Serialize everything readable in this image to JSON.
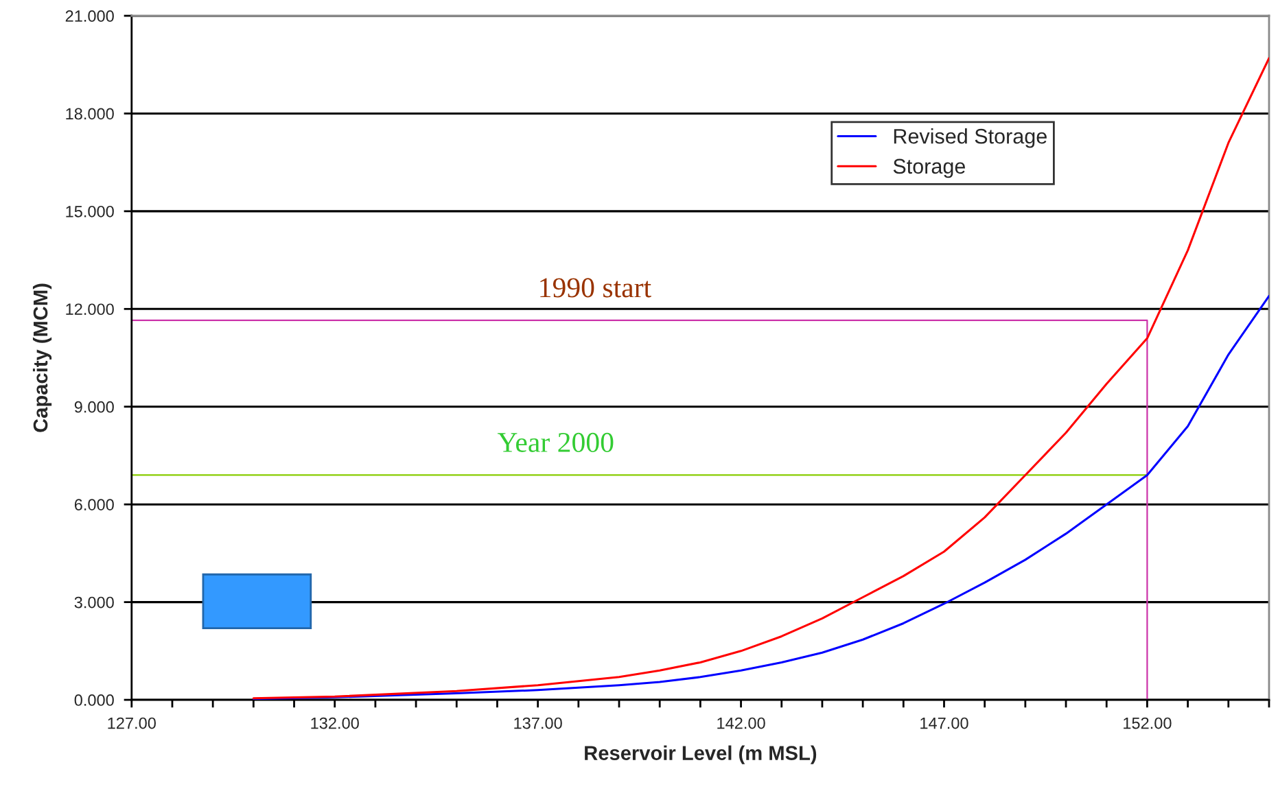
{
  "chart_data": {
    "type": "line",
    "xlabel": "Reservoir Level (m MSL)",
    "ylabel": "Capacity (MCM)",
    "xlim": [
      127,
      155
    ],
    "ylim": [
      0,
      21
    ],
    "xticks": [
      {
        "value": 127,
        "label": "127.00"
      },
      {
        "value": 128,
        "label": null
      },
      {
        "value": 129,
        "label": null
      },
      {
        "value": 130,
        "label": null
      },
      {
        "value": 131,
        "label": null
      },
      {
        "value": 132,
        "label": "132.00"
      },
      {
        "value": 133,
        "label": null
      },
      {
        "value": 134,
        "label": null
      },
      {
        "value": 135,
        "label": null
      },
      {
        "value": 136,
        "label": null
      },
      {
        "value": 137,
        "label": "137.00"
      },
      {
        "value": 138,
        "label": null
      },
      {
        "value": 139,
        "label": null
      },
      {
        "value": 140,
        "label": null
      },
      {
        "value": 141,
        "label": null
      },
      {
        "value": 142,
        "label": "142.00"
      },
      {
        "value": 143,
        "label": null
      },
      {
        "value": 144,
        "label": null
      },
      {
        "value": 145,
        "label": null
      },
      {
        "value": 146,
        "label": null
      },
      {
        "value": 147,
        "label": "147.00"
      },
      {
        "value": 148,
        "label": null
      },
      {
        "value": 149,
        "label": null
      },
      {
        "value": 150,
        "label": null
      },
      {
        "value": 151,
        "label": null
      },
      {
        "value": 152,
        "label": "152.00"
      },
      {
        "value": 153,
        "label": null
      },
      {
        "value": 154,
        "label": null
      },
      {
        "value": 155,
        "label": null
      }
    ],
    "yticks": [
      {
        "value": 0,
        "label": "0.000"
      },
      {
        "value": 3,
        "label": "3.000"
      },
      {
        "value": 6,
        "label": "6.000"
      },
      {
        "value": 9,
        "label": "9.000"
      },
      {
        "value": 12,
        "label": "12.000"
      },
      {
        "value": 15,
        "label": "15.000"
      },
      {
        "value": 18,
        "label": "18.000"
      },
      {
        "value": 21,
        "label": "21.000"
      }
    ],
    "grid": "y",
    "legend": "top right",
    "marker": "none",
    "line_style": "solid",
    "series": [
      {
        "name": "Revised Storage",
        "color": "#0000ff",
        "x": [
          130,
          132,
          135,
          137,
          139,
          140,
          141,
          142,
          143,
          144,
          145,
          146,
          147,
          148,
          149,
          150,
          151,
          152,
          153,
          154,
          155
        ],
        "values": [
          0.03,
          0.08,
          0.2,
          0.3,
          0.45,
          0.55,
          0.7,
          0.9,
          1.15,
          1.45,
          1.85,
          2.35,
          2.95,
          3.6,
          4.3,
          5.1,
          6.0,
          6.9,
          8.4,
          10.6,
          12.4
        ]
      },
      {
        "name": "Storage",
        "color": "#ff0000",
        "x": [
          130,
          132,
          135,
          137,
          139,
          140,
          141,
          142,
          143,
          144,
          145,
          146,
          147,
          148,
          149,
          150,
          151,
          152,
          153,
          154,
          155
        ],
        "values": [
          0.05,
          0.1,
          0.27,
          0.45,
          0.7,
          0.9,
          1.15,
          1.5,
          1.95,
          2.5,
          3.15,
          3.8,
          4.55,
          5.6,
          6.9,
          8.2,
          9.7,
          11.1,
          13.8,
          17.1,
          19.7
        ]
      },
      {
        "color": "#cc33aa",
        "x": [
          127,
          152,
          152
        ],
        "values": [
          11.65,
          11.65,
          0
        ]
      },
      {
        "color": "#88cc00",
        "x": [
          127,
          152
        ],
        "values": [
          6.9,
          6.9
        ]
      }
    ],
    "annotations": [
      {
        "text": "1990 start",
        "x": 137,
        "y": 11.65
      },
      {
        "text": "Year 2000",
        "x": 136,
        "y": 6.9
      }
    ]
  }
}
